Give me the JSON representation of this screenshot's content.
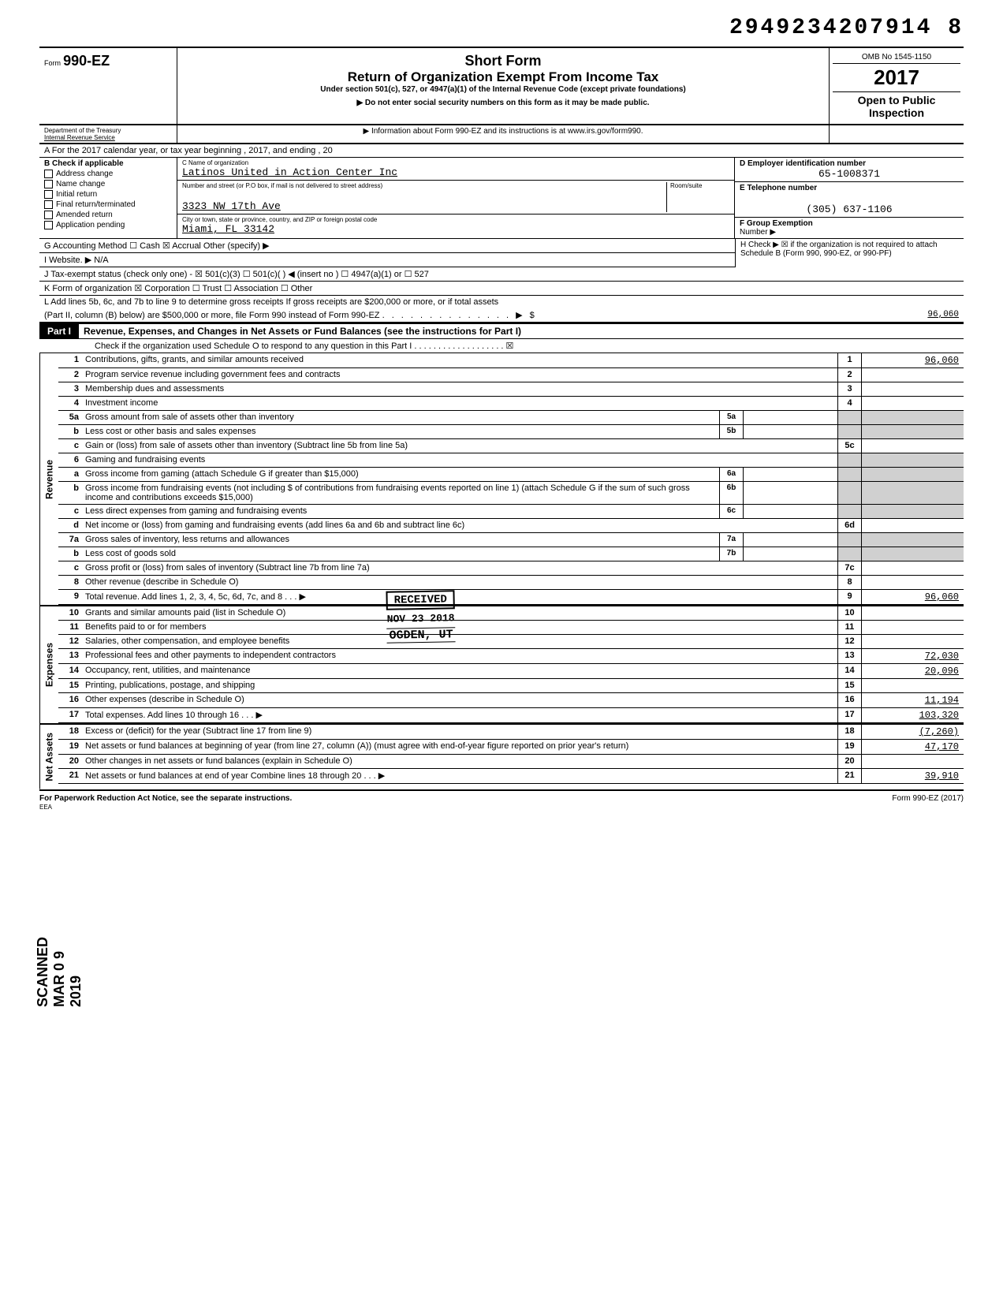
{
  "doc_number": "2949234207914 8",
  "header": {
    "form_no": "990-EZ",
    "form_label": "Form",
    "short_form": "Short Form",
    "title": "Return of Organization Exempt From Income Tax",
    "subtitle": "Under section 501(c), 527, or 4947(a)(1) of the Internal Revenue Code (except private foundations)",
    "note1": "▶ Do not enter social security numbers on this form as it may be made public.",
    "note2": "▶ Information about Form 990-EZ and its instructions is at www.irs.gov/form990.",
    "omb": "OMB No 1545-1150",
    "year": "2017",
    "open": "Open to Public Inspection",
    "dept": "Department of the Treasury",
    "irs": "Internal Revenue Service"
  },
  "section_a": "A  For the 2017 calendar year, or tax year beginning                                                    , 2017, and ending                                          , 20",
  "section_b": {
    "title": "B  Check if applicable",
    "items": [
      "Address change",
      "Name change",
      "Initial return",
      "Final return/terminated",
      "Amended return",
      "Application pending"
    ]
  },
  "section_c": {
    "label_name": "C  Name of organization",
    "org_name": "Latinos United in Action Center Inc",
    "label_addr": "Number and street (or P.O  box, if mail is not delivered to street address)",
    "room": "Room/suite",
    "street": "3323 NW 17th Ave",
    "label_city": "City or town, state or province, country, and ZIP or foreign postal code",
    "city": "Miami, FL 33142"
  },
  "section_d": {
    "label": "D  Employer identification number",
    "value": "65-1008371"
  },
  "section_e": {
    "label": "E  Telephone number",
    "value": "(305) 637-1106"
  },
  "section_f": {
    "label": "F  Group Exemption",
    "label2": "Number  ▶"
  },
  "line_g": "G  Accounting Method        ☐ Cash   ☒ Accrual       Other (specify) ▶",
  "line_h": "H  Check ▶  ☒  if the organization is not required to attach Schedule B (Form 990, 990-EZ, or 990-PF)",
  "line_i": "I    Website.    ▶ N/A",
  "line_j": "J   Tax-exempt status (check only one) -   ☒ 501(c)(3)     ☐ 501(c)(      ) ◀ (insert no )       ☐ 4947(a)(1) or     ☐ 527",
  "line_k": "K  Form of organization     ☒ Corporation       ☐ Trust             ☐ Association       ☐ Other",
  "line_l": {
    "text": "L  Add lines 5b, 6c, and 7b to line 9 to determine gross receipts  If gross receipts are $200,000 or more, or if total assets",
    "text2": "(Part II, column (B) below) are $500,000 or more, file Form 990 instead of Form 990-EZ",
    "dots": ". . . . . . . . . . . . . . ▶ $",
    "value": "96,060"
  },
  "part1": {
    "label": "Part I",
    "title": "Revenue, Expenses, and Changes in Net Assets or Fund Balances (see the instructions for Part I)",
    "check": "Check if the organization used Schedule O to respond to any question in this Part I   . . . . . . . . . . . . . . . . . . . ☒"
  },
  "revenue": {
    "label": "Revenue",
    "lines": [
      {
        "n": "1",
        "d": "Contributions, gifts, grants, and similar amounts received",
        "box": "1",
        "v": "96,060"
      },
      {
        "n": "2",
        "d": "Program service revenue including government fees and contracts",
        "box": "2",
        "v": ""
      },
      {
        "n": "3",
        "d": "Membership dues and assessments",
        "box": "3",
        "v": ""
      },
      {
        "n": "4",
        "d": "Investment income",
        "box": "4",
        "v": ""
      },
      {
        "n": "5a",
        "d": "Gross amount from sale of assets other than inventory",
        "sub": "5a"
      },
      {
        "n": "b",
        "d": "Less cost or other basis and sales expenses",
        "sub": "5b"
      },
      {
        "n": "c",
        "d": "Gain or (loss) from sale of assets other than inventory (Subtract line 5b from line 5a)",
        "box": "5c",
        "v": ""
      },
      {
        "n": "6",
        "d": "Gaming and fundraising events"
      },
      {
        "n": "a",
        "d": "Gross income from gaming (attach Schedule G if greater than $15,000)",
        "sub": "6a"
      },
      {
        "n": "b",
        "d": "Gross income from fundraising events (not including    $                          of contributions from fundraising events reported on line 1) (attach Schedule G if the sum of such gross income and contributions exceeds $15,000)",
        "sub": "6b"
      },
      {
        "n": "c",
        "d": "Less direct expenses from gaming and fundraising events",
        "sub": "6c"
      },
      {
        "n": "d",
        "d": "Net income or (loss) from gaming and fundraising events (add lines 6a and 6b and subtract line 6c)",
        "box": "6d",
        "v": ""
      },
      {
        "n": "7a",
        "d": "Gross sales of inventory, less returns and allowances",
        "sub": "7a"
      },
      {
        "n": "b",
        "d": "Less cost of goods sold",
        "sub": "7b"
      },
      {
        "n": "c",
        "d": "Gross profit or (loss) from sales of inventory (Subtract line 7b from line 7a)",
        "box": "7c",
        "v": ""
      },
      {
        "n": "8",
        "d": "Other revenue (describe in Schedule O)",
        "box": "8",
        "v": ""
      },
      {
        "n": "9",
        "d": "Total revenue.  Add lines 1, 2, 3, 4, 5c, 6d, 7c, and 8",
        "box": "9",
        "v": "96,060",
        "arrow": true
      }
    ]
  },
  "expenses": {
    "label": "Expenses",
    "lines": [
      {
        "n": "10",
        "d": "Grants and similar amounts paid (list in Schedule O)",
        "box": "10",
        "v": ""
      },
      {
        "n": "11",
        "d": "Benefits paid to or for members",
        "box": "11",
        "v": ""
      },
      {
        "n": "12",
        "d": "Salaries, other compensation, and employee benefits",
        "box": "12",
        "v": ""
      },
      {
        "n": "13",
        "d": "Professional fees and other payments to independent contractors",
        "box": "13",
        "v": "72,030"
      },
      {
        "n": "14",
        "d": "Occupancy, rent, utilities, and maintenance",
        "box": "14",
        "v": "20,096"
      },
      {
        "n": "15",
        "d": "Printing, publications, postage, and shipping",
        "box": "15",
        "v": ""
      },
      {
        "n": "16",
        "d": "Other expenses (describe in Schedule O)",
        "box": "16",
        "v": "11,194"
      },
      {
        "n": "17",
        "d": "Total expenses.  Add lines 10 through 16",
        "box": "17",
        "v": "103,320",
        "arrow": true
      }
    ]
  },
  "netassets": {
    "label": "Net Assets",
    "lines": [
      {
        "n": "18",
        "d": "Excess or (deficit) for the year (Subtract line 17 from line 9)",
        "box": "18",
        "v": "(7,260)"
      },
      {
        "n": "19",
        "d": "Net assets or fund balances at beginning of year (from line 27, column (A)) (must agree with end-of-year figure reported on prior year's return)",
        "box": "19",
        "v": "47,170"
      },
      {
        "n": "20",
        "d": "Other changes in net assets or fund balances (explain in Schedule O)",
        "box": "20",
        "v": ""
      },
      {
        "n": "21",
        "d": "Net assets or fund balances at end of year  Combine lines 18 through 20",
        "box": "21",
        "v": "39,910",
        "arrow": true
      }
    ]
  },
  "footer": {
    "left": "For Paperwork Reduction Act Notice, see the separate instructions.",
    "eea": "EEA",
    "right": "Form 990-EZ (2017)"
  },
  "stamps": {
    "received": "RECEIVED",
    "date": "NOV 23 2018",
    "ogden": "OGDEN, UT",
    "scanned": "SCANNED MAR 0 9 2019"
  }
}
